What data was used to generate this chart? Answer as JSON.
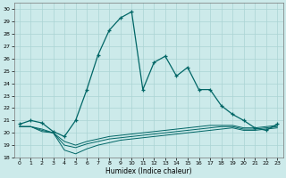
{
  "xlabel": "Humidex (Indice chaleur)",
  "xlim": [
    -0.5,
    23.5
  ],
  "ylim": [
    18,
    30.5
  ],
  "yticks": [
    18,
    19,
    20,
    21,
    22,
    23,
    24,
    25,
    26,
    27,
    28,
    29,
    30
  ],
  "xticks": [
    0,
    1,
    2,
    3,
    4,
    5,
    6,
    7,
    8,
    9,
    10,
    11,
    12,
    13,
    14,
    15,
    16,
    17,
    18,
    19,
    20,
    21,
    22,
    23
  ],
  "bg_color": "#cceaea",
  "grid_color": "#aad4d4",
  "line_color": "#006666",
  "main_y": [
    20.7,
    21.0,
    20.8,
    20.1,
    19.7,
    21.0,
    23.5,
    26.3,
    28.3,
    29.3,
    29.8,
    23.5,
    25.7,
    26.2,
    24.6,
    25.3,
    23.5,
    23.5,
    22.2,
    21.5,
    21.0,
    20.4,
    20.2,
    20.7
  ],
  "flat1_y": [
    20.5,
    20.5,
    20.1,
    20.0,
    18.6,
    18.3,
    18.7,
    19.0,
    19.2,
    19.4,
    19.5,
    19.6,
    19.7,
    19.8,
    19.9,
    20.0,
    20.1,
    20.2,
    20.3,
    20.4,
    20.2,
    20.2,
    20.3,
    20.4
  ],
  "flat2_y": [
    20.5,
    20.5,
    20.2,
    20.0,
    19.0,
    18.8,
    19.1,
    19.3,
    19.5,
    19.6,
    19.7,
    19.8,
    19.9,
    20.0,
    20.1,
    20.2,
    20.3,
    20.4,
    20.5,
    20.5,
    20.3,
    20.3,
    20.4,
    20.5
  ],
  "flat3_y": [
    20.5,
    20.5,
    20.3,
    20.0,
    19.3,
    19.0,
    19.3,
    19.5,
    19.7,
    19.8,
    19.9,
    20.0,
    20.1,
    20.2,
    20.3,
    20.4,
    20.5,
    20.6,
    20.6,
    20.6,
    20.4,
    20.4,
    20.5,
    20.6
  ]
}
